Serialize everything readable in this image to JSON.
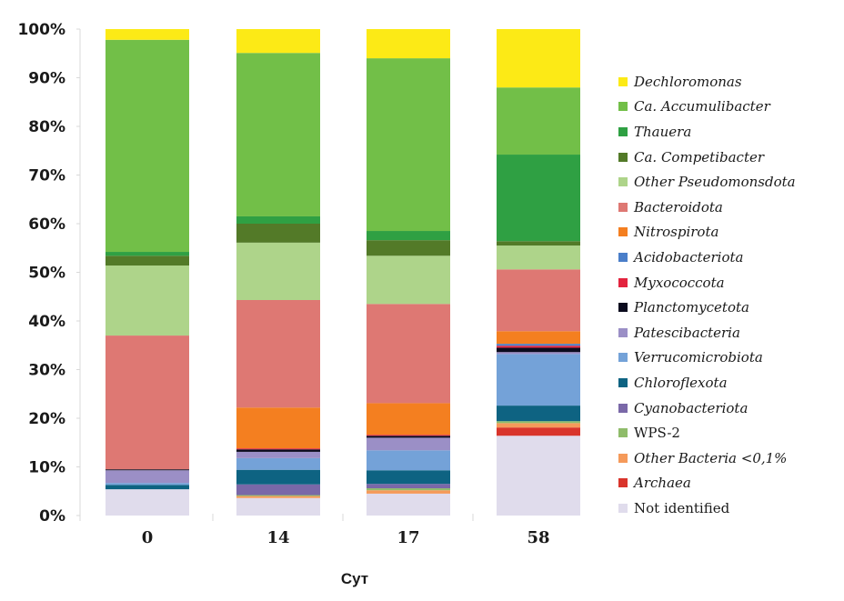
{
  "chart_data": {
    "type": "bar",
    "stacked": true,
    "title": "",
    "xlabel": "Сут",
    "ylabel": "",
    "ylim": [
      0,
      100
    ],
    "ytick_labels": [
      "0%",
      "10%",
      "20%",
      "30%",
      "40%",
      "50%",
      "60%",
      "70%",
      "80%",
      "90%",
      "100%"
    ],
    "categories": [
      "0",
      "14",
      "17",
      "58"
    ],
    "legend_position": "right",
    "series": [
      {
        "name": "Not identified",
        "color": "#e0dcec",
        "italic": false,
        "values": [
          5.4,
          3.6,
          4.5,
          16.4
        ]
      },
      {
        "name": "Archaea",
        "color": "#d9342b",
        "italic": true,
        "values": [
          0,
          0,
          0,
          1.7
        ]
      },
      {
        "name": "Other Bacteria <0,1%",
        "color": "#f59a5a",
        "italic": true,
        "values": [
          0,
          0.4,
          0.7,
          0.9
        ]
      },
      {
        "name": "WPS-2",
        "color": "#8fbc6a",
        "italic": false,
        "values": [
          0,
          0.2,
          0.4,
          0.4
        ]
      },
      {
        "name": "Cyanobacteriota",
        "color": "#7a68a8",
        "italic": true,
        "values": [
          0,
          2.2,
          0.9,
          0
        ]
      },
      {
        "name": "Chloroflexota",
        "color": "#0e6382",
        "italic": true,
        "values": [
          0.9,
          3.0,
          2.8,
          3.2
        ]
      },
      {
        "name": "Verrucomicrobiota",
        "color": "#74a2d8",
        "italic": true,
        "values": [
          0.4,
          2.4,
          4.1,
          10.6
        ]
      },
      {
        "name": "Patescibacteria",
        "color": "#9b8fc6",
        "italic": true,
        "values": [
          2.6,
          1.3,
          2.6,
          0.4
        ]
      },
      {
        "name": "Planctomycetota",
        "color": "#0b0b1e",
        "italic": true,
        "values": [
          0.2,
          0.5,
          0.4,
          0.9
        ]
      },
      {
        "name": "Myxococcota",
        "color": "#e3233e",
        "italic": true,
        "values": [
          0,
          0.2,
          0.2,
          0.4
        ]
      },
      {
        "name": "Acidobacteriota",
        "color": "#4a7ec9",
        "italic": true,
        "values": [
          0,
          0,
          0,
          0.4
        ]
      },
      {
        "name": "Nitrospirota",
        "color": "#f47f20",
        "italic": true,
        "values": [
          0,
          8.4,
          6.5,
          2.6
        ]
      },
      {
        "name": "Bacteroidota",
        "color": "#de7873",
        "italic": true,
        "values": [
          27.5,
          22.1,
          20.4,
          12.7
        ]
      },
      {
        "name": "Other Pseudomonsdota",
        "color": "#aed48a",
        "italic": true,
        "values": [
          14.4,
          11.8,
          9.9,
          4.9
        ]
      },
      {
        "name": "Ca. Competibacter",
        "color": "#537a28",
        "italic": true,
        "values": [
          2.0,
          3.9,
          3.2,
          0.9
        ]
      },
      {
        "name": "Thauera",
        "color": "#2fa043",
        "italic": true,
        "values": [
          0.8,
          1.5,
          1.9,
          17.8
        ]
      },
      {
        "name": "Ca. Accumulibacter",
        "color": "#72bf48",
        "italic": true,
        "values": [
          43.6,
          33.6,
          35.5,
          13.8
        ]
      },
      {
        "name": "Dechloromonas",
        "color": "#fcea16",
        "italic": true,
        "values": [
          2.2,
          4.9,
          6.0,
          12.0
        ]
      }
    ]
  }
}
